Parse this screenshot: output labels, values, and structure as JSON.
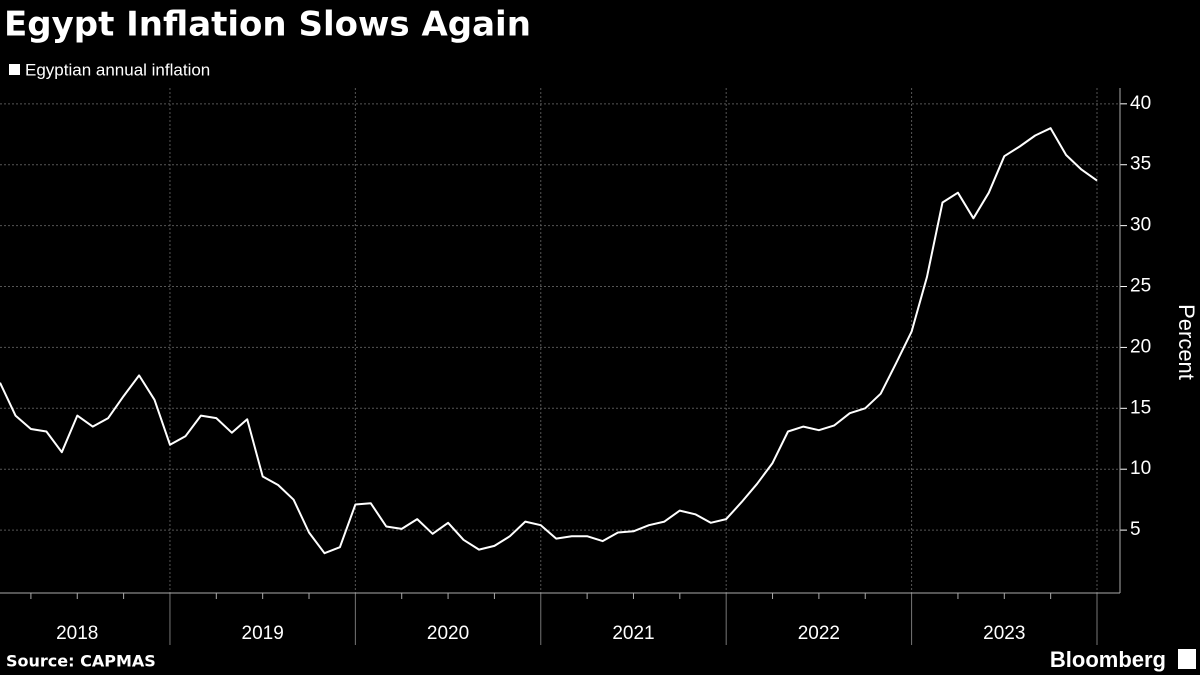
{
  "chart_data": {
    "type": "line",
    "title": "Egypt Inflation Slows Again",
    "y_axis_label": "Percent",
    "source": "Source: CAPMAS",
    "brand": "Bloomberg",
    "categories": [
      "2018",
      null,
      null,
      null,
      null,
      null,
      null,
      null,
      null,
      null,
      null,
      null,
      "2019",
      null,
      null,
      null,
      null,
      null,
      null,
      null,
      null,
      null,
      null,
      null,
      "2020",
      null,
      null,
      null,
      null,
      null,
      null,
      null,
      null,
      null,
      null,
      null,
      "2021",
      null,
      null,
      null,
      null,
      null,
      null,
      null,
      null,
      null,
      null,
      null,
      "2022",
      null,
      null,
      null,
      null,
      null,
      null,
      null,
      null,
      null,
      null,
      null,
      "2023",
      null,
      null,
      null,
      null,
      null,
      null,
      null,
      null,
      null,
      null,
      null
    ],
    "series": [
      {
        "name": "Egyptian annual inflation",
        "color": "#ffffff",
        "values": [
          17.1,
          14.4,
          13.3,
          13.1,
          11.4,
          14.4,
          13.5,
          14.2,
          16.0,
          17.7,
          15.7,
          12.0,
          12.7,
          14.4,
          14.2,
          13.0,
          14.1,
          9.4,
          8.7,
          7.5,
          4.8,
          3.1,
          3.6,
          7.1,
          7.2,
          5.3,
          5.1,
          5.9,
          4.7,
          5.6,
          4.2,
          3.4,
          3.7,
          4.5,
          5.7,
          5.4,
          4.3,
          4.5,
          4.5,
          4.1,
          4.8,
          4.9,
          5.4,
          5.7,
          6.6,
          6.3,
          5.6,
          5.9,
          7.3,
          8.8,
          10.5,
          13.1,
          13.5,
          13.2,
          13.6,
          14.6,
          15.0,
          16.2,
          18.7,
          21.3,
          25.8,
          31.9,
          32.7,
          30.6,
          32.7,
          35.7,
          36.5,
          37.4,
          38.0,
          35.8,
          34.6,
          33.7
        ]
      }
    ],
    "ylim": [
      0,
      41.3
    ],
    "yticks": [
      5,
      10,
      15,
      20,
      25,
      30,
      35,
      40
    ],
    "grid": true
  }
}
